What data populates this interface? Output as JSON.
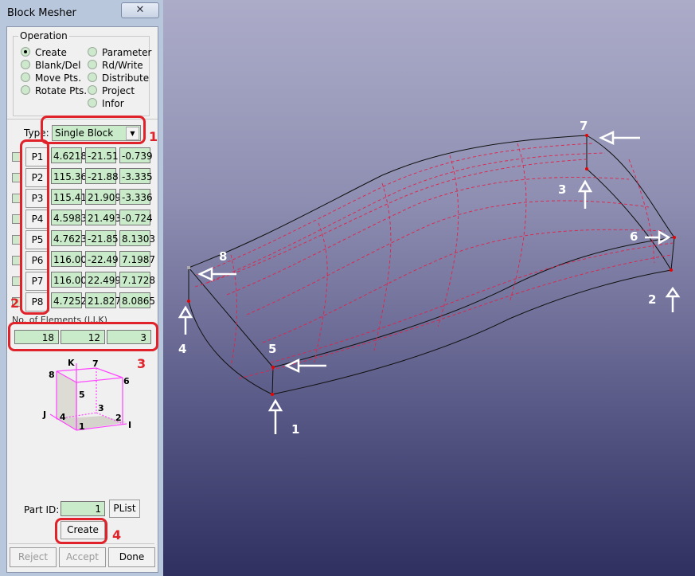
{
  "window": {
    "title": "Block Mesher",
    "close_icon": "close-icon"
  },
  "operation": {
    "legend": "Operation",
    "left": [
      {
        "label": "Create",
        "selected": true
      },
      {
        "label": "Blank/Del"
      },
      {
        "label": "Move Pts."
      },
      {
        "label": "Rotate Pts."
      }
    ],
    "right": [
      {
        "label": "Parameter"
      },
      {
        "label": "Rd/Write"
      },
      {
        "label": "Distribute"
      },
      {
        "label": "Project"
      },
      {
        "label": "Infor"
      }
    ]
  },
  "type": {
    "label": "Type:",
    "value": "Single Block"
  },
  "points": [
    {
      "label": "P1",
      "x": "4.6218",
      "y": "-21.51",
      "z": "-0.739"
    },
    {
      "label": "P2",
      "x": "115.36",
      "y": "-21.88",
      "z": "-3.335"
    },
    {
      "label": "P3",
      "x": "115.41",
      "y": "21.909",
      "z": "-3.336"
    },
    {
      "label": "P4",
      "x": "4.5983",
      "y": "21.493",
      "z": "-0.724"
    },
    {
      "label": "P5",
      "x": "4.7623",
      "y": "-21.85",
      "z": "8.1303"
    },
    {
      "label": "P6",
      "x": "116.00",
      "y": "-22.49",
      "z": "7.1987"
    },
    {
      "label": "P7",
      "x": "116.00",
      "y": "22.499",
      "z": "7.1728"
    },
    {
      "label": "P8",
      "x": "4.7252",
      "y": "21.827",
      "z": "8.0865"
    }
  ],
  "elements": {
    "label": "No. of Elements (I,J,K)",
    "i": "18",
    "j": "12",
    "k": "3"
  },
  "diagram": {
    "corners": [
      "1",
      "2",
      "3",
      "4",
      "5",
      "6",
      "7",
      "8"
    ],
    "axes": [
      "I",
      "J",
      "K"
    ]
  },
  "part": {
    "label": "Part ID:",
    "value": "1",
    "plist": "PList"
  },
  "buttons": {
    "create": "Create",
    "reject": "Reject",
    "accept": "Accept",
    "done": "Done"
  },
  "annotations": [
    "1",
    "2",
    "3",
    "4"
  ],
  "viewport_labels": [
    "1",
    "2",
    "3",
    "4",
    "5",
    "6",
    "7",
    "8"
  ],
  "colors": {
    "annotation": "#e0222a",
    "field": "#c9ebc9"
  }
}
